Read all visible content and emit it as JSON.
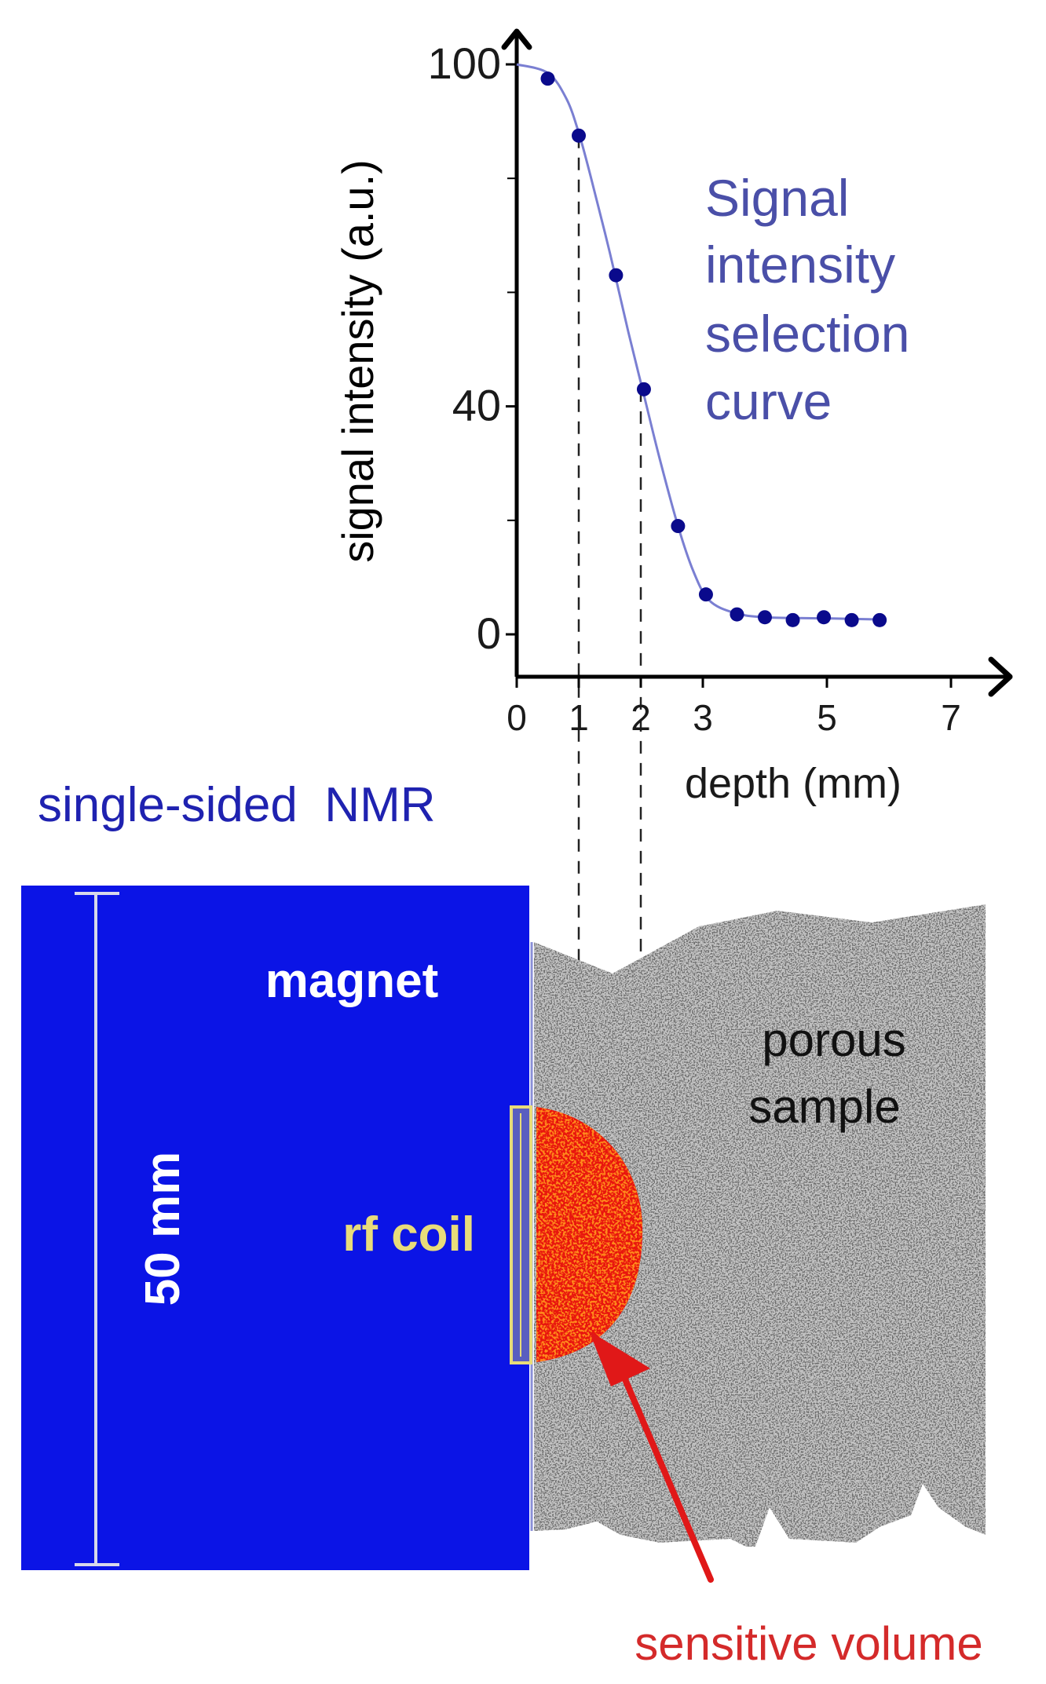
{
  "chart_data": {
    "type": "scatter",
    "title_lines": [
      "Signal",
      "intensity",
      "selection",
      "curve"
    ],
    "xlabel": "depth (mm)",
    "ylabel": "signal intensity (a.u.)",
    "xlim": [
      0,
      8
    ],
    "ylim": [
      0,
      100
    ],
    "x_ticks": [
      {
        "value": 0,
        "label": "0"
      },
      {
        "value": 1,
        "label": "1"
      },
      {
        "value": 2,
        "label": "2"
      },
      {
        "value": 3,
        "label": "3"
      },
      {
        "value": 5,
        "label": "5"
      },
      {
        "value": 7,
        "label": "7"
      }
    ],
    "y_ticks": [
      {
        "value": 0,
        "label": "0"
      },
      {
        "value": 40,
        "label": "40"
      },
      {
        "value": 100,
        "label": "100"
      }
    ],
    "y_minor_ticks": [
      20,
      60,
      80
    ],
    "points": [
      {
        "x": 0.5,
        "y": 97.5
      },
      {
        "x": 1.0,
        "y": 87.5
      },
      {
        "x": 1.6,
        "y": 63
      },
      {
        "x": 2.05,
        "y": 43
      },
      {
        "x": 2.6,
        "y": 19
      },
      {
        "x": 3.05,
        "y": 7
      },
      {
        "x": 3.55,
        "y": 3.5
      },
      {
        "x": 4.0,
        "y": 3
      },
      {
        "x": 4.45,
        "y": 2.5
      },
      {
        "x": 4.95,
        "y": 3
      },
      {
        "x": 5.4,
        "y": 2.5
      },
      {
        "x": 5.85,
        "y": 2.5
      }
    ],
    "curve": [
      {
        "x": 0.0,
        "y": 100
      },
      {
        "x": 0.5,
        "y": 98.5
      },
      {
        "x": 0.8,
        "y": 94
      },
      {
        "x": 1.0,
        "y": 88
      },
      {
        "x": 1.2,
        "y": 80
      },
      {
        "x": 1.5,
        "y": 67
      },
      {
        "x": 1.8,
        "y": 53
      },
      {
        "x": 2.05,
        "y": 42
      },
      {
        "x": 2.3,
        "y": 31
      },
      {
        "x": 2.6,
        "y": 19
      },
      {
        "x": 2.85,
        "y": 11
      },
      {
        "x": 3.1,
        "y": 6
      },
      {
        "x": 3.5,
        "y": 3.8
      },
      {
        "x": 4.0,
        "y": 3
      },
      {
        "x": 5.0,
        "y": 2.8
      },
      {
        "x": 5.9,
        "y": 2.6
      }
    ],
    "guide_depths": [
      1,
      2
    ],
    "colors": {
      "axis": "#000000",
      "curve": "#7a7fd2",
      "points": "#0a0a8c",
      "title": "#4a4fa8"
    }
  },
  "labels": {
    "single_sided": "single-sided  NMR",
    "magnet": "magnet",
    "dimension": "50 mm",
    "rf_coil": "rf coil",
    "porous_line1": "porous",
    "porous_line2": "sample",
    "sensitive_volume": "sensitive volume"
  },
  "colors": {
    "magnet": "#0b14e6",
    "label_blue": "#1f22b0",
    "coil": "#e8dc7a",
    "sample_light": "#c4c4c4",
    "sample_dark": "#6e6e6e",
    "sensitive_red": "#e8150e",
    "sensitive_orange": "#ff8a1a",
    "arrow_red": "#e01818",
    "sensitive_label": "#d42a2a"
  }
}
